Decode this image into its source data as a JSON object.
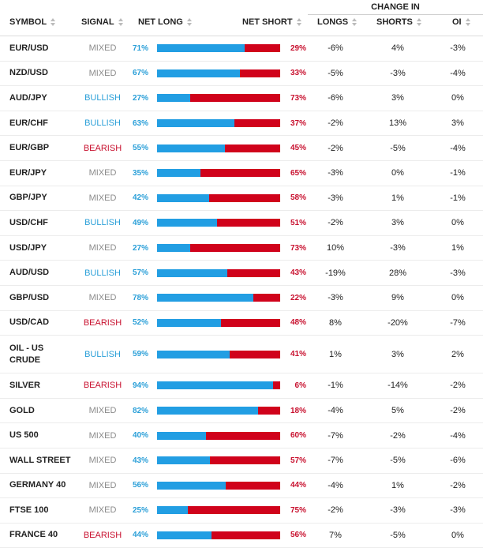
{
  "header": {
    "change_in": "CHANGE IN",
    "symbol": "SYMBOL",
    "signal": "SIGNAL",
    "net_long": "NET LONG",
    "net_short": "NET SHORT",
    "longs": "LONGS",
    "shorts": "SHORTS",
    "oi": "OI"
  },
  "colors": {
    "long": "#229ee3",
    "short": "#d0021b",
    "bullish": "#2a9fd8",
    "bearish": "#c8102e",
    "mixed": "#8a8a8a"
  },
  "rows": [
    {
      "symbol": "EUR/USD",
      "signal": "MIXED",
      "net_long": "71%",
      "long_value": 71,
      "net_short": "29%",
      "longs": "-6%",
      "shorts": "4%",
      "oi": "-3%"
    },
    {
      "symbol": "NZD/USD",
      "signal": "MIXED",
      "net_long": "67%",
      "long_value": 67,
      "net_short": "33%",
      "longs": "-5%",
      "shorts": "-3%",
      "oi": "-4%"
    },
    {
      "symbol": "AUD/JPY",
      "signal": "BULLISH",
      "net_long": "27%",
      "long_value": 27,
      "net_short": "73%",
      "longs": "-6%",
      "shorts": "3%",
      "oi": "0%"
    },
    {
      "symbol": "EUR/CHF",
      "signal": "BULLISH",
      "net_long": "63%",
      "long_value": 63,
      "net_short": "37%",
      "longs": "-2%",
      "shorts": "13%",
      "oi": "3%"
    },
    {
      "symbol": "EUR/GBP",
      "signal": "BEARISH",
      "net_long": "55%",
      "long_value": 55,
      "net_short": "45%",
      "longs": "-2%",
      "shorts": "-5%",
      "oi": "-4%"
    },
    {
      "symbol": "EUR/JPY",
      "signal": "MIXED",
      "net_long": "35%",
      "long_value": 35,
      "net_short": "65%",
      "longs": "-3%",
      "shorts": "0%",
      "oi": "-1%"
    },
    {
      "symbol": "GBP/JPY",
      "signal": "MIXED",
      "net_long": "42%",
      "long_value": 42,
      "net_short": "58%",
      "longs": "-3%",
      "shorts": "1%",
      "oi": "-1%"
    },
    {
      "symbol": "USD/CHF",
      "signal": "BULLISH",
      "net_long": "49%",
      "long_value": 49,
      "net_short": "51%",
      "longs": "-2%",
      "shorts": "3%",
      "oi": "0%"
    },
    {
      "symbol": "USD/JPY",
      "signal": "MIXED",
      "net_long": "27%",
      "long_value": 27,
      "net_short": "73%",
      "longs": "10%",
      "shorts": "-3%",
      "oi": "1%"
    },
    {
      "symbol": "AUD/USD",
      "signal": "BULLISH",
      "net_long": "57%",
      "long_value": 57,
      "net_short": "43%",
      "longs": "-19%",
      "shorts": "28%",
      "oi": "-3%"
    },
    {
      "symbol": "GBP/USD",
      "signal": "MIXED",
      "net_long": "78%",
      "long_value": 78,
      "net_short": "22%",
      "longs": "-3%",
      "shorts": "9%",
      "oi": "0%"
    },
    {
      "symbol": "USD/CAD",
      "signal": "BEARISH",
      "net_long": "52%",
      "long_value": 52,
      "net_short": "48%",
      "longs": "8%",
      "shorts": "-20%",
      "oi": "-7%"
    },
    {
      "symbol": "OIL - US CRUDE",
      "signal": "BULLISH",
      "net_long": "59%",
      "long_value": 59,
      "net_short": "41%",
      "longs": "1%",
      "shorts": "3%",
      "oi": "2%",
      "tall": true
    },
    {
      "symbol": "SILVER",
      "signal": "BEARISH",
      "net_long": "94%",
      "long_value": 94,
      "net_short": "6%",
      "longs": "-1%",
      "shorts": "-14%",
      "oi": "-2%"
    },
    {
      "symbol": "GOLD",
      "signal": "MIXED",
      "net_long": "82%",
      "long_value": 82,
      "net_short": "18%",
      "longs": "-4%",
      "shorts": "5%",
      "oi": "-2%"
    },
    {
      "symbol": "US 500",
      "signal": "MIXED",
      "net_long": "40%",
      "long_value": 40,
      "net_short": "60%",
      "longs": "-7%",
      "shorts": "-2%",
      "oi": "-4%"
    },
    {
      "symbol": "WALL STREET",
      "signal": "MIXED",
      "net_long": "43%",
      "long_value": 43,
      "net_short": "57%",
      "longs": "-7%",
      "shorts": "-5%",
      "oi": "-6%"
    },
    {
      "symbol": "GERMANY 40",
      "signal": "MIXED",
      "net_long": "56%",
      "long_value": 56,
      "net_short": "44%",
      "longs": "-4%",
      "shorts": "1%",
      "oi": "-2%"
    },
    {
      "symbol": "FTSE 100",
      "signal": "MIXED",
      "net_long": "25%",
      "long_value": 25,
      "net_short": "75%",
      "longs": "-2%",
      "shorts": "-3%",
      "oi": "-3%"
    },
    {
      "symbol": "FRANCE 40",
      "signal": "BEARISH",
      "net_long": "44%",
      "long_value": 44,
      "net_short": "56%",
      "longs": "7%",
      "shorts": "-5%",
      "oi": "0%"
    }
  ]
}
